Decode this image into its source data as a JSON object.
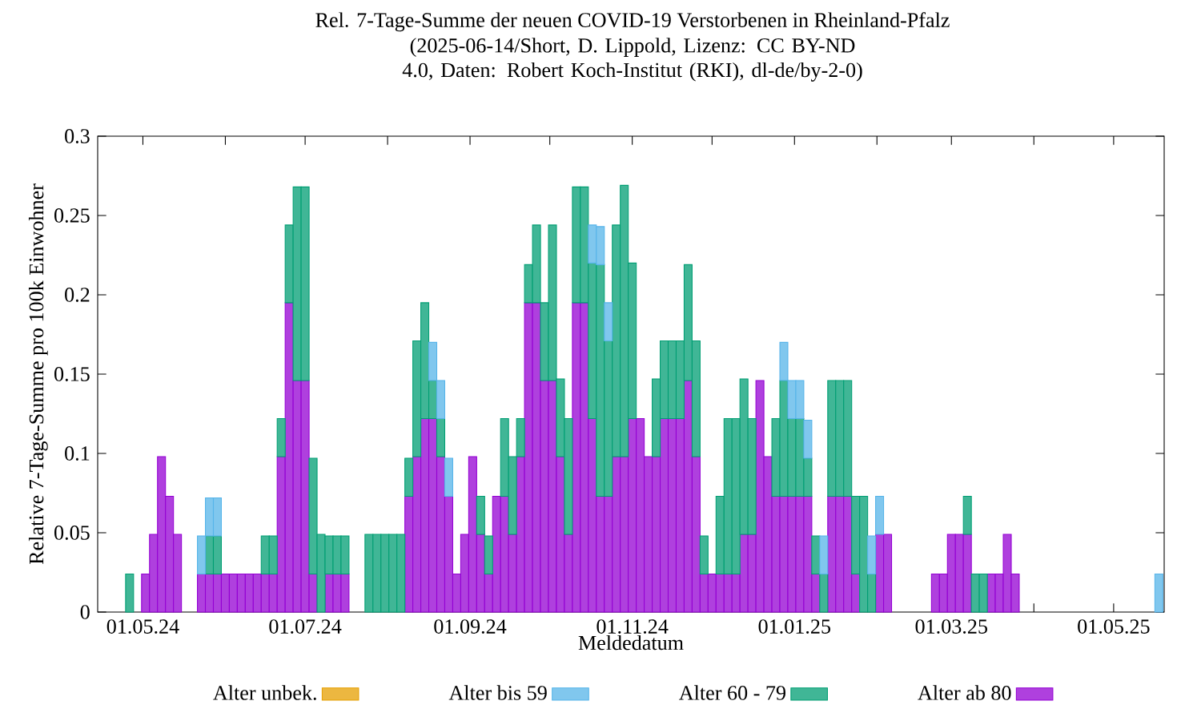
{
  "chart_data": {
    "type": "bar",
    "stacked": true,
    "title": "Rel. 7-Tage-Summe der neuen COVID-19 Verstorbenen in Rheinland-Pfalz",
    "subtitle": "(2025-06-14/Short, D. Lippold, Lizenz: CC BY-ND 4.0, Daten: Robert Koch-Institut (RKI), dl-de/by-2-0)",
    "xlabel": "Meldedatum",
    "ylabel": "Relative 7-Tage-Summe pro 100k Einwohner",
    "legend": "bottom",
    "xlim": [
      "2024-04-14",
      "2025-05-20"
    ],
    "xticks": [
      {
        "value": "2024-05-01",
        "label": "01.05.24"
      },
      {
        "value": "2024-06-01",
        "label": null
      },
      {
        "value": "2024-07-01",
        "label": "01.07.24"
      },
      {
        "value": "2024-08-01",
        "label": null
      },
      {
        "value": "2024-09-01",
        "label": "01.09.24"
      },
      {
        "value": "2024-10-01",
        "label": null
      },
      {
        "value": "2024-11-01",
        "label": "01.11.24"
      },
      {
        "value": "2024-12-01",
        "label": null
      },
      {
        "value": "2025-01-01",
        "label": "01.01.25"
      },
      {
        "value": "2025-02-01",
        "label": null
      },
      {
        "value": "2025-03-01",
        "label": "01.03.25"
      },
      {
        "value": "2025-04-01",
        "label": null
      },
      {
        "value": "2025-05-01",
        "label": "01.05.25"
      }
    ],
    "ylim": [
      0,
      0.3
    ],
    "yticks": [
      0,
      0.05,
      0.1,
      0.15,
      0.2,
      0.25,
      0.3
    ],
    "x": [
      "2024-04-26",
      "2024-05-02",
      "2024-05-05",
      "2024-05-08",
      "2024-05-11",
      "2024-05-14",
      "2024-05-23",
      "2024-05-26",
      "2024-05-29",
      "2024-06-01",
      "2024-06-04",
      "2024-06-07",
      "2024-06-10",
      "2024-06-13",
      "2024-06-16",
      "2024-06-19",
      "2024-06-22",
      "2024-06-25",
      "2024-06-28",
      "2024-07-01",
      "2024-07-04",
      "2024-07-07",
      "2024-07-10",
      "2024-07-13",
      "2024-07-16",
      "2024-07-25",
      "2024-07-28",
      "2024-07-31",
      "2024-08-03",
      "2024-08-06",
      "2024-08-09",
      "2024-08-12",
      "2024-08-15",
      "2024-08-18",
      "2024-08-21",
      "2024-08-24",
      "2024-08-27",
      "2024-08-30",
      "2024-09-02",
      "2024-09-05",
      "2024-09-08",
      "2024-09-11",
      "2024-09-14",
      "2024-09-17",
      "2024-09-20",
      "2024-09-23",
      "2024-09-26",
      "2024-09-29",
      "2024-10-02",
      "2024-10-05",
      "2024-10-08",
      "2024-10-11",
      "2024-10-14",
      "2024-10-17",
      "2024-10-20",
      "2024-10-23",
      "2024-10-26",
      "2024-10-29",
      "2024-11-01",
      "2024-11-04",
      "2024-11-07",
      "2024-11-10",
      "2024-11-13",
      "2024-11-16",
      "2024-11-19",
      "2024-11-22",
      "2024-11-25",
      "2024-11-28",
      "2024-12-01",
      "2024-12-04",
      "2024-12-07",
      "2024-12-10",
      "2024-12-13",
      "2024-12-16",
      "2024-12-19",
      "2024-12-22",
      "2024-12-25",
      "2024-12-28",
      "2024-12-31",
      "2025-01-03",
      "2025-01-06",
      "2025-01-09",
      "2025-01-12",
      "2025-01-15",
      "2025-01-18",
      "2025-01-21",
      "2025-01-24",
      "2025-01-27",
      "2025-01-30",
      "2025-02-02",
      "2025-02-05",
      "2025-02-23",
      "2025-02-26",
      "2025-03-01",
      "2025-03-04",
      "2025-03-07",
      "2025-03-10",
      "2025-03-13",
      "2025-03-16",
      "2025-03-19",
      "2025-03-22",
      "2025-03-25",
      "2025-05-18"
    ],
    "series": [
      {
        "name": "Alter ab 80",
        "color": "#9400d3",
        "values": [
          null,
          0.024,
          0.049,
          0.098,
          0.073,
          0.049,
          0.024,
          0.024,
          0.024,
          0.024,
          0.024,
          0.024,
          0.024,
          0.024,
          0.024,
          0.024,
          0.098,
          0.195,
          0.146,
          0.146,
          0.024,
          null,
          0.024,
          0.024,
          0.024,
          null,
          null,
          null,
          null,
          null,
          0.073,
          0.098,
          0.122,
          0.122,
          0.098,
          0.073,
          0.024,
          0.049,
          0.098,
          0.049,
          0.024,
          0.073,
          0.073,
          0.049,
          0.098,
          0.195,
          0.195,
          0.146,
          0.146,
          0.098,
          0.049,
          0.195,
          0.195,
          0.122,
          0.073,
          0.073,
          0.098,
          0.098,
          0.122,
          0.122,
          0.098,
          0.098,
          0.122,
          0.122,
          0.122,
          0.146,
          0.098,
          0.024,
          0.024,
          0.024,
          0.024,
          0.024,
          0.049,
          0.049,
          0.146,
          0.098,
          0.073,
          0.073,
          0.073,
          0.073,
          0.073,
          0.024,
          null,
          0.073,
          0.073,
          0.073,
          0.024,
          null,
          null,
          0.049,
          0.049,
          0.024,
          0.024,
          0.049,
          0.049,
          0.049,
          null,
          null,
          0.024,
          0.024,
          0.049,
          0.024,
          null
        ]
      },
      {
        "name": "Alter 60 - 79",
        "color": "#009e73",
        "values": [
          0.024,
          null,
          null,
          null,
          null,
          null,
          null,
          0.024,
          0.024,
          null,
          null,
          null,
          null,
          null,
          0.024,
          0.024,
          0.024,
          0.049,
          0.122,
          0.122,
          0.073,
          0.049,
          0.024,
          0.024,
          0.024,
          0.049,
          0.049,
          0.049,
          0.049,
          0.049,
          0.024,
          0.073,
          0.073,
          0.024,
          0.024,
          null,
          null,
          null,
          null,
          0.024,
          0.024,
          null,
          0.049,
          0.049,
          0.024,
          0.024,
          0.049,
          0.049,
          0.098,
          0.049,
          0.073,
          0.073,
          0.073,
          0.098,
          0.146,
          0.098,
          0.146,
          0.171,
          0.098,
          null,
          null,
          0.049,
          0.049,
          0.049,
          0.049,
          0.073,
          0.073,
          0.024,
          null,
          0.049,
          0.098,
          0.098,
          0.098,
          0.073,
          null,
          null,
          0.049,
          0.073,
          0.049,
          0.049,
          0.024,
          0.024,
          0.024,
          0.073,
          0.073,
          0.073,
          0.049,
          0.073,
          0.024,
          null,
          null,
          null,
          null,
          null,
          null,
          0.024,
          0.024,
          0.024,
          null,
          null,
          null,
          null,
          null
        ]
      },
      {
        "name": "Alter bis 59",
        "color": "#56b4e9",
        "values": [
          null,
          null,
          null,
          null,
          null,
          null,
          0.024,
          0.024,
          0.024,
          null,
          null,
          null,
          null,
          null,
          null,
          null,
          null,
          null,
          null,
          null,
          null,
          null,
          null,
          null,
          null,
          null,
          null,
          null,
          null,
          null,
          null,
          null,
          null,
          0.024,
          0.024,
          0.024,
          null,
          null,
          null,
          null,
          null,
          null,
          null,
          null,
          null,
          null,
          null,
          null,
          null,
          null,
          null,
          null,
          null,
          0.024,
          0.024,
          0.024,
          null,
          null,
          null,
          null,
          null,
          null,
          null,
          null,
          null,
          null,
          null,
          null,
          null,
          null,
          null,
          null,
          null,
          null,
          null,
          null,
          null,
          0.024,
          0.024,
          0.024,
          0.024,
          null,
          0.024,
          null,
          null,
          null,
          null,
          null,
          0.024,
          0.024,
          null,
          null,
          null,
          null,
          null,
          null,
          null,
          null,
          null,
          null,
          null,
          null,
          0.024
        ]
      },
      {
        "name": "Alter unbek.",
        "color": "#e69f00",
        "values": [
          null,
          null,
          null,
          null,
          null,
          null,
          null,
          null,
          null,
          null,
          null,
          null,
          null,
          null,
          null,
          null,
          null,
          null,
          null,
          null,
          null,
          null,
          null,
          null,
          null,
          null,
          null,
          null,
          null,
          null,
          null,
          null,
          null,
          null,
          null,
          null,
          null,
          null,
          null,
          null,
          null,
          null,
          null,
          null,
          null,
          null,
          null,
          null,
          null,
          null,
          null,
          null,
          null,
          null,
          null,
          null,
          null,
          null,
          null,
          null,
          null,
          null,
          null,
          null,
          null,
          null,
          null,
          null,
          null,
          null,
          null,
          null,
          null,
          null,
          null,
          null,
          null,
          null,
          null,
          null,
          null,
          null,
          null,
          null,
          null,
          null,
          null,
          null,
          null,
          null,
          null,
          null,
          null,
          null,
          null,
          null,
          null,
          null,
          null,
          null,
          null,
          null,
          null
        ]
      }
    ]
  }
}
